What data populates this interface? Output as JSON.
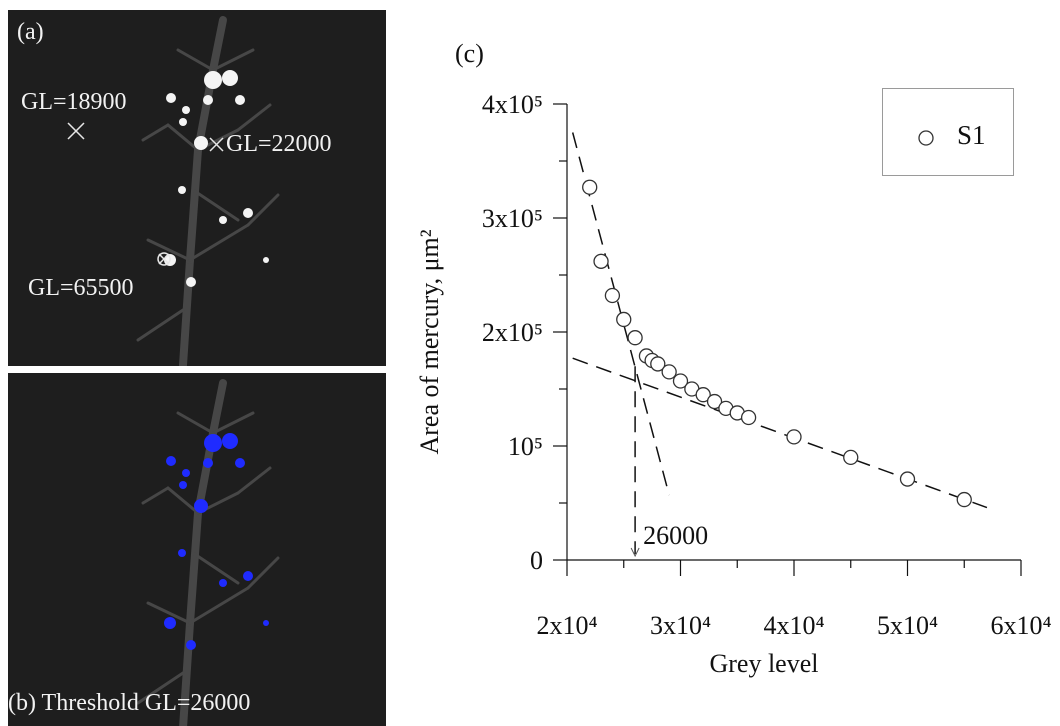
{
  "panel_a": {
    "label": "(a)",
    "annotations": [
      {
        "text": "GL=18900",
        "marker": "x-marker-icon"
      },
      {
        "text": "GL=22000",
        "marker": "x-marker-icon"
      },
      {
        "text": "GL=65500",
        "marker": "circled-x-marker-icon"
      }
    ]
  },
  "panel_b": {
    "label": "(b) Threshold GL=26000",
    "highlight_color": "#1f2bff"
  },
  "chart": {
    "panel_label": "(c)",
    "legend_label": "S1",
    "annotation": "26000"
  },
  "chart_data": {
    "type": "scatter",
    "xlabel": "Grey level",
    "ylabel": "Area of mercury, μm²",
    "xlim": [
      20000,
      60000
    ],
    "ylim": [
      0,
      400000
    ],
    "x_tick_labels": [
      "2x10⁴",
      "3x10⁴",
      "4x10⁴",
      "5x10⁴",
      "6x10⁴"
    ],
    "y_tick_labels": [
      "0",
      "10⁵",
      "2x10⁵",
      "3x10⁵",
      "4x10⁵"
    ],
    "grid": false,
    "legend_position": "top-right",
    "marker_color": "#333333",
    "series": [
      {
        "name": "S1",
        "marker": "open-circle",
        "x": [
          22000,
          23000,
          24000,
          25000,
          26000,
          27000,
          27500,
          28000,
          29000,
          30000,
          31000,
          32000,
          33000,
          34000,
          35000,
          36000,
          40000,
          45000,
          50000,
          55000
        ],
        "y": [
          327000,
          262000,
          232000,
          211000,
          195000,
          179000,
          175000,
          172000,
          165000,
          157000,
          150000,
          145000,
          139000,
          133000,
          129000,
          125000,
          108000,
          90000,
          71000,
          53000
        ]
      }
    ],
    "fit_lines": [
      {
        "x": [
          20500,
          29000
        ],
        "y": [
          375000,
          57000
        ]
      },
      {
        "x": [
          20500,
          57000
        ],
        "y": [
          177000,
          46000
        ]
      }
    ],
    "threshold_line": {
      "x": 26000,
      "y": [
        0,
        170000
      ]
    },
    "annotations": [
      {
        "text": "26000",
        "x": 26000,
        "y": 0
      }
    ]
  }
}
